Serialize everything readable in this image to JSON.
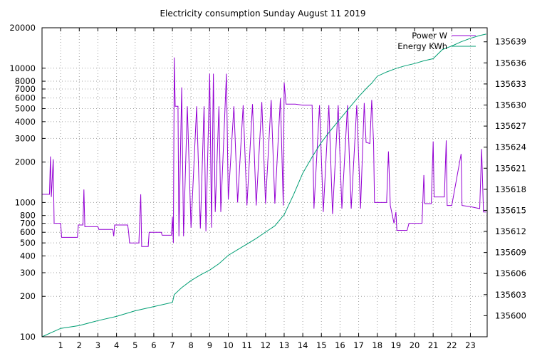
{
  "chart_data": {
    "type": "line",
    "title": "Electricity consumption Sunday August 11 2019",
    "xlabel": "",
    "ylabel": "",
    "y2label": "",
    "x_ticks": [
      "1",
      "2",
      "3",
      "4",
      "5",
      "6",
      "7",
      "8",
      "9",
      "10",
      "11",
      "12",
      "13",
      "14",
      "15",
      "16",
      "17",
      "18",
      "19",
      "20",
      "21",
      "22",
      "23"
    ],
    "xlim": [
      0,
      23.9
    ],
    "y_scale": "log",
    "ylim": [
      100,
      20000
    ],
    "y_ticks": [
      100,
      200,
      300,
      400,
      500,
      600,
      700,
      800,
      1000,
      2000,
      3000,
      4000,
      5000,
      6000,
      7000,
      8000,
      10000,
      20000
    ],
    "y2lim": [
      135597,
      135641
    ],
    "y2_ticks": [
      135600,
      135603,
      135606,
      135609,
      135612,
      135615,
      135618,
      135621,
      135624,
      135627,
      135630,
      135633,
      135636,
      135639
    ],
    "grid": true,
    "legend_position": "top-right",
    "series": [
      {
        "name": "Power W",
        "axis": "y",
        "color": "#9400d3",
        "points": [
          [
            0.0,
            1150
          ],
          [
            0.4,
            1150
          ],
          [
            0.45,
            2200
          ],
          [
            0.5,
            1100
          ],
          [
            0.6,
            2100
          ],
          [
            0.65,
            700
          ],
          [
            1.0,
            700
          ],
          [
            1.05,
            550
          ],
          [
            1.9,
            550
          ],
          [
            1.95,
            680
          ],
          [
            2.2,
            680
          ],
          [
            2.25,
            1250
          ],
          [
            2.3,
            660
          ],
          [
            3.0,
            660
          ],
          [
            3.05,
            630
          ],
          [
            3.8,
            630
          ],
          [
            3.85,
            560
          ],
          [
            3.9,
            680
          ],
          [
            4.6,
            680
          ],
          [
            4.65,
            600
          ],
          [
            4.7,
            500
          ],
          [
            5.2,
            500
          ],
          [
            5.3,
            1150
          ],
          [
            5.35,
            470
          ],
          [
            5.7,
            470
          ],
          [
            5.75,
            600
          ],
          [
            6.4,
            600
          ],
          [
            6.45,
            570
          ],
          [
            6.95,
            570
          ],
          [
            7.0,
            780
          ],
          [
            7.05,
            500
          ],
          [
            7.1,
            12000
          ],
          [
            7.15,
            5200
          ],
          [
            7.3,
            5200
          ],
          [
            7.35,
            560
          ],
          [
            7.5,
            7200
          ],
          [
            7.6,
            560
          ],
          [
            7.8,
            5200
          ],
          [
            8.0,
            650
          ],
          [
            8.3,
            5200
          ],
          [
            8.5,
            640
          ],
          [
            8.7,
            5200
          ],
          [
            8.8,
            610
          ],
          [
            9.0,
            9100
          ],
          [
            9.1,
            650
          ],
          [
            9.2,
            9100
          ],
          [
            9.3,
            850
          ],
          [
            9.5,
            5200
          ],
          [
            9.6,
            850
          ],
          [
            9.9,
            9100
          ],
          [
            10.0,
            1050
          ],
          [
            10.3,
            5200
          ],
          [
            10.5,
            1000
          ],
          [
            10.8,
            5300
          ],
          [
            11.0,
            950
          ],
          [
            11.3,
            5400
          ],
          [
            11.5,
            950
          ],
          [
            11.8,
            5600
          ],
          [
            12.0,
            980
          ],
          [
            12.3,
            5800
          ],
          [
            12.5,
            980
          ],
          [
            12.8,
            6000
          ],
          [
            12.95,
            950
          ],
          [
            13.0,
            7800
          ],
          [
            13.1,
            5400
          ],
          [
            13.6,
            5400
          ],
          [
            14.0,
            5300
          ],
          [
            14.5,
            5300
          ],
          [
            14.6,
            900
          ],
          [
            14.9,
            5300
          ],
          [
            15.1,
            850
          ],
          [
            15.4,
            5300
          ],
          [
            15.6,
            820
          ],
          [
            15.9,
            5300
          ],
          [
            16.1,
            900
          ],
          [
            16.4,
            5300
          ],
          [
            16.6,
            900
          ],
          [
            16.9,
            5300
          ],
          [
            17.1,
            900
          ],
          [
            17.3,
            5500
          ],
          [
            17.4,
            2800
          ],
          [
            17.6,
            2750
          ],
          [
            17.7,
            5800
          ],
          [
            17.8,
            2800
          ],
          [
            17.85,
            1000
          ],
          [
            18.5,
            1000
          ],
          [
            18.6,
            2400
          ],
          [
            18.7,
            950
          ],
          [
            18.9,
            700
          ],
          [
            19.0,
            850
          ],
          [
            19.05,
            620
          ],
          [
            19.6,
            620
          ],
          [
            19.7,
            700
          ],
          [
            20.4,
            700
          ],
          [
            20.5,
            1600
          ],
          [
            20.55,
            980
          ],
          [
            20.9,
            980
          ],
          [
            21.0,
            2850
          ],
          [
            21.05,
            1100
          ],
          [
            21.6,
            1100
          ],
          [
            21.7,
            2900
          ],
          [
            21.75,
            950
          ],
          [
            22.0,
            950
          ],
          [
            22.5,
            2300
          ],
          [
            22.55,
            950
          ],
          [
            23.0,
            930
          ],
          [
            23.5,
            900
          ],
          [
            23.6,
            2500
          ],
          [
            23.7,
            850
          ],
          [
            23.85,
            850
          ]
        ]
      },
      {
        "name": "Energy KWh",
        "axis": "y2",
        "color": "#009e73",
        "points": [
          [
            0.0,
            135597.0
          ],
          [
            1.0,
            135598.2
          ],
          [
            2.0,
            135598.6
          ],
          [
            3.0,
            135599.3
          ],
          [
            4.0,
            135599.9
          ],
          [
            5.0,
            135600.7
          ],
          [
            6.0,
            135601.3
          ],
          [
            7.0,
            135601.9
          ],
          [
            7.1,
            135603.0
          ],
          [
            7.5,
            135604.0
          ],
          [
            8.0,
            135605.0
          ],
          [
            8.5,
            135605.8
          ],
          [
            9.0,
            135606.5
          ],
          [
            9.5,
            135607.4
          ],
          [
            10.0,
            135608.6
          ],
          [
            10.5,
            135609.4
          ],
          [
            11.0,
            135610.2
          ],
          [
            11.5,
            135611.0
          ],
          [
            12.0,
            135611.9
          ],
          [
            12.5,
            135612.8
          ],
          [
            13.0,
            135614.4
          ],
          [
            13.5,
            135617.2
          ],
          [
            14.0,
            135620.3
          ],
          [
            14.5,
            135622.6
          ],
          [
            15.0,
            135624.7
          ],
          [
            15.5,
            135626.4
          ],
          [
            16.0,
            135628.0
          ],
          [
            16.5,
            135629.6
          ],
          [
            17.0,
            135631.2
          ],
          [
            17.5,
            135632.6
          ],
          [
            17.7,
            135633.1
          ],
          [
            18.0,
            135634.1
          ],
          [
            18.5,
            135634.7
          ],
          [
            19.0,
            135635.2
          ],
          [
            19.5,
            135635.6
          ],
          [
            20.0,
            135635.9
          ],
          [
            20.5,
            135636.3
          ],
          [
            21.0,
            135636.6
          ],
          [
            21.5,
            135637.9
          ],
          [
            22.0,
            135638.4
          ],
          [
            22.5,
            135639.0
          ],
          [
            23.0,
            135639.5
          ],
          [
            23.5,
            135639.9
          ],
          [
            23.85,
            135640.1
          ]
        ]
      }
    ]
  }
}
